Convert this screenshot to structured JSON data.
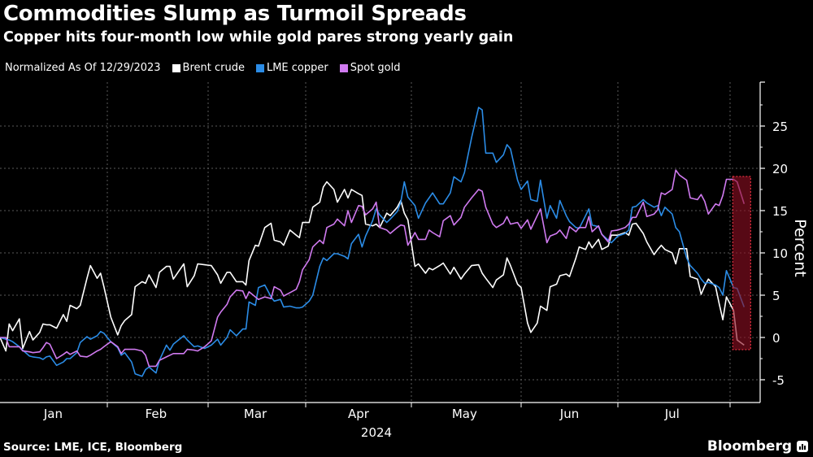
{
  "header": {
    "title": "Commodities Slump as Turmoil Spreads",
    "subtitle": "Copper hits four-month low while gold pares strong yearly gain"
  },
  "legend": {
    "note": "Normalized As Of 12/29/2023",
    "items": [
      {
        "label": "Brent crude",
        "color": "#ffffff"
      },
      {
        "label": "LME copper",
        "color": "#2b8ce6"
      },
      {
        "label": "Spot gold",
        "color": "#d07af0"
      }
    ]
  },
  "footer": {
    "source": "Source: LME, ICE, Bloomberg",
    "brand": "Bloomberg"
  },
  "chart_data": {
    "type": "line",
    "ylabel": "Percent",
    "ylim": [
      -7.7,
      30
    ],
    "yticks": [
      -5,
      0,
      5,
      10,
      15,
      20,
      25
    ],
    "y_axis_side": "right",
    "grid": true,
    "xlabel": "2024",
    "xticks": [
      "Jan",
      "Feb",
      "Mar",
      "Apr",
      "May",
      "Jun",
      "Jul"
    ],
    "highlight": {
      "from": "2024-08-02",
      "to": "2024-08-05",
      "color": "#8c0f22"
    },
    "x": [
      "2023-12-29",
      "2024-01-02",
      "2024-01-03",
      "2024-01-04",
      "2024-01-06",
      "2024-01-07",
      "2024-01-09",
      "2024-01-10",
      "2024-01-12",
      "2024-01-13",
      "2024-01-14",
      "2024-01-15",
      "2024-01-17",
      "2024-01-19",
      "2024-01-20",
      "2024-01-21",
      "2024-01-23",
      "2024-01-24",
      "2024-01-26",
      "2024-01-27",
      "2024-01-29",
      "2024-01-30",
      "2024-01-31",
      "2024-02-02",
      "2024-02-04",
      "2024-02-05",
      "2024-02-06",
      "2024-02-08",
      "2024-02-09",
      "2024-02-11",
      "2024-02-12",
      "2024-02-13",
      "2024-02-15",
      "2024-02-16",
      "2024-02-18",
      "2024-02-19",
      "2024-02-20",
      "2024-02-23",
      "2024-02-24",
      "2024-02-26",
      "2024-02-27",
      "2024-02-29",
      "2024-03-02",
      "2024-03-04",
      "2024-03-05",
      "2024-03-07",
      "2024-03-08",
      "2024-03-10",
      "2024-03-12",
      "2024-03-13",
      "2024-03-14",
      "2024-03-16",
      "2024-03-17",
      "2024-03-19",
      "2024-03-21",
      "2024-03-22",
      "2024-03-24",
      "2024-03-25",
      "2024-03-27",
      "2024-03-29",
      "2024-03-30",
      "2024-03-31",
      "2024-04-02",
      "2024-04-03",
      "2024-04-05",
      "2024-04-06",
      "2024-04-07",
      "2024-04-09",
      "2024-04-10",
      "2024-04-12",
      "2024-04-13",
      "2024-04-14",
      "2024-04-16",
      "2024-04-17",
      "2024-04-18",
      "2024-04-20",
      "2024-04-21",
      "2024-04-22",
      "2024-04-24",
      "2024-04-25",
      "2024-04-27",
      "2024-04-28",
      "2024-04-29",
      "2024-04-30",
      "2024-05-02",
      "2024-05-03",
      "2024-05-05",
      "2024-05-06",
      "2024-05-07",
      "2024-05-09",
      "2024-05-10",
      "2024-05-12",
      "2024-05-13",
      "2024-05-15",
      "2024-05-16",
      "2024-05-18",
      "2024-05-20",
      "2024-05-21",
      "2024-05-22",
      "2024-05-24",
      "2024-05-25",
      "2024-05-27",
      "2024-05-28",
      "2024-05-29",
      "2024-05-31",
      "2024-06-01",
      "2024-06-03",
      "2024-06-04",
      "2024-06-06",
      "2024-06-07",
      "2024-06-09",
      "2024-06-10",
      "2024-06-12",
      "2024-06-13",
      "2024-06-15",
      "2024-06-16",
      "2024-06-18",
      "2024-06-19",
      "2024-06-21",
      "2024-06-22",
      "2024-06-23",
      "2024-06-25",
      "2024-06-26",
      "2024-06-28",
      "2024-06-29",
      "2024-07-01",
      "2024-07-03",
      "2024-07-04",
      "2024-07-05",
      "2024-07-06",
      "2024-07-08",
      "2024-07-09",
      "2024-07-11",
      "2024-07-12",
      "2024-07-13",
      "2024-07-14",
      "2024-07-16",
      "2024-07-17",
      "2024-07-18",
      "2024-07-20",
      "2024-07-21",
      "2024-07-23",
      "2024-07-24",
      "2024-07-25",
      "2024-07-26",
      "2024-07-28",
      "2024-07-29",
      "2024-07-30",
      "2024-07-31",
      "2024-08-02",
      "2024-08-03",
      "2024-08-05"
    ],
    "series": [
      {
        "name": "Brent crude",
        "color": "#ffffff",
        "values": [
          0,
          -1.6,
          1.6,
          0.8,
          2.2,
          -1.3,
          0.7,
          -0.3,
          0.6,
          1.6,
          1.5,
          1.5,
          1.1,
          2.7,
          1.9,
          3.8,
          3.4,
          3.8,
          7.0,
          8.5,
          7.0,
          7.6,
          6.0,
          2.4,
          0.3,
          1.4,
          2.0,
          2.7,
          6.0,
          6.6,
          6.4,
          7.4,
          5.9,
          7.7,
          8.4,
          8.4,
          6.9,
          8.7,
          6.0,
          7.3,
          8.7,
          8.6,
          8.5,
          7.4,
          6.4,
          7.7,
          7.7,
          6.6,
          6.6,
          6.2,
          9.1,
          10.9,
          10.8,
          13.0,
          13.5,
          11.5,
          11.3,
          10.9,
          12.7,
          12.1,
          11.8,
          13.6,
          13.6,
          15.4,
          16.0,
          17.8,
          18.4,
          17.5,
          16.0,
          17.5,
          16.5,
          17.5,
          17.0,
          16.8,
          13.4,
          13.2,
          13.4,
          13.0,
          14.7,
          14.4,
          15.4,
          16.2,
          14.7,
          13.9,
          8.4,
          8.7,
          7.6,
          8.2,
          8.0,
          8.5,
          8.8,
          7.5,
          8.3,
          6.9,
          7.5,
          8.5,
          8.6,
          7.6,
          7.0,
          5.9,
          6.8,
          7.4,
          9.4,
          8.5,
          6.3,
          5.9,
          1.7,
          0.6,
          1.7,
          3.7,
          3.2,
          6.0,
          6.3,
          7.3,
          7.5,
          7.2,
          9.4,
          10.7,
          10.4,
          11.3,
          10.6,
          11.6,
          10.4,
          10.8,
          12.1,
          12.1,
          12.4,
          12.1,
          13.4,
          13.5,
          12.3,
          11.3,
          9.8,
          10.4,
          10.9,
          10.4,
          10.0,
          8.7,
          10.5,
          10.5,
          7.2,
          6.9,
          5.1,
          6.1,
          6.9,
          6.0,
          4.0,
          2.1,
          4.8,
          3.2,
          -0.3,
          -0.9
        ]
      },
      {
        "name": "LME copper",
        "color": "#2b8ce6",
        "values": [
          0,
          -0.2,
          -0.3,
          -0.5,
          -1.1,
          -1.5,
          -2.2,
          -2.3,
          -2.4,
          -2.6,
          -2.3,
          -2.2,
          -3.3,
          -2.9,
          -2.5,
          -2.5,
          -1.8,
          -0.6,
          0.1,
          -0.2,
          0.2,
          0.7,
          0.5,
          -0.5,
          -1.2,
          -2.1,
          -1.8,
          -2.9,
          -4.3,
          -4.6,
          -3.8,
          -3.5,
          -4.2,
          -2.7,
          -0.9,
          -1.5,
          -0.8,
          0.2,
          -0.3,
          -1.1,
          -1.0,
          -1.3,
          -0.9,
          -0.2,
          -0.9,
          0,
          0.9,
          0.2,
          1.0,
          1.0,
          4.2,
          3.8,
          5.9,
          6.2,
          4.8,
          4.3,
          4.5,
          3.6,
          3.7,
          3.5,
          3.5,
          3.6,
          4.3,
          5.0,
          8.4,
          9.4,
          9.1,
          9.9,
          9.9,
          9.6,
          9.3,
          11.1,
          12.2,
          10.7,
          12.0,
          13.8,
          15.2,
          14.5,
          13.6,
          14.0,
          14.9,
          16.0,
          18.4,
          16.6,
          15.6,
          14.1,
          15.9,
          16.5,
          17.1,
          15.8,
          15.8,
          17.1,
          19.0,
          18.4,
          19.5,
          23.6,
          27.2,
          26.9,
          21.8,
          21.8,
          20.7,
          21.6,
          22.8,
          22.3,
          18.6,
          17.5,
          18.5,
          16.3,
          16.1,
          18.6,
          14.1,
          15.6,
          14.1,
          16.2,
          14.4,
          13.7,
          13.0,
          12.9,
          14.4,
          15.2,
          13.3,
          13.1,
          12.2,
          11.5,
          11.2,
          12.0,
          12.3,
          12.7,
          15.4,
          15.5,
          16.3,
          15.9,
          15.4,
          15.6,
          14.4,
          15.4,
          14.6,
          13.0,
          12.5,
          9.4,
          8.5,
          7.6,
          6.9,
          6.4,
          6.5,
          6.2,
          5.9,
          5.0,
          7.9,
          5.9,
          5.8,
          3.6
        ]
      },
      {
        "name": "Spot gold",
        "color": "#d07af0",
        "values": [
          0,
          0,
          -1.1,
          -1.1,
          -1.1,
          -1.6,
          -1.7,
          -1.8,
          -1.7,
          -1.2,
          -0.6,
          -0.8,
          -2.5,
          -2.0,
          -1.7,
          -2.0,
          -1.6,
          -2.2,
          -2.3,
          -2.1,
          -1.6,
          -1.4,
          -1.1,
          -0.5,
          -1.1,
          -1.9,
          -1.4,
          -1.4,
          -1.4,
          -1.6,
          -2.1,
          -3.4,
          -3.4,
          -2.7,
          -2.3,
          -2.1,
          -1.9,
          -1.9,
          -1.4,
          -1.5,
          -1.6,
          -1.1,
          -0.4,
          2.4,
          3.0,
          3.9,
          4.8,
          5.6,
          5.5,
          4.6,
          5.4,
          4.8,
          4.5,
          4.8,
          4.6,
          6.0,
          5.6,
          4.9,
          5.3,
          5.7,
          6.6,
          8.0,
          9.2,
          10.7,
          11.5,
          11.1,
          13.0,
          13.4,
          14.0,
          13.2,
          15.0,
          13.6,
          15.6,
          15.5,
          14.5,
          15.2,
          16.0,
          13.0,
          12.7,
          12.3,
          13.0,
          13.3,
          13.2,
          10.9,
          12.4,
          11.6,
          11.6,
          12.7,
          12.4,
          11.9,
          13.8,
          14.4,
          13.3,
          14.2,
          15.4,
          16.5,
          17.5,
          17.3,
          15.4,
          13.4,
          13.0,
          13.5,
          14.3,
          13.4,
          13.6,
          12.9,
          13.9,
          12.8,
          14.4,
          15.2,
          11.2,
          12.0,
          12.3,
          12.7,
          11.7,
          13.1,
          12.5,
          13.0,
          13.0,
          14.3,
          12.5,
          13.2,
          12.2,
          11.3,
          12.6,
          12.7,
          13.0,
          13.4,
          14.2,
          14.2,
          16.0,
          14.3,
          14.6,
          15.1,
          17.1,
          16.9,
          17.5,
          19.8,
          19.2,
          18.6,
          16.5,
          16.3,
          16.9,
          16.1,
          14.6,
          15.8,
          15.6,
          16.8,
          18.7,
          18.7,
          18.4,
          15.8
        ]
      }
    ]
  }
}
